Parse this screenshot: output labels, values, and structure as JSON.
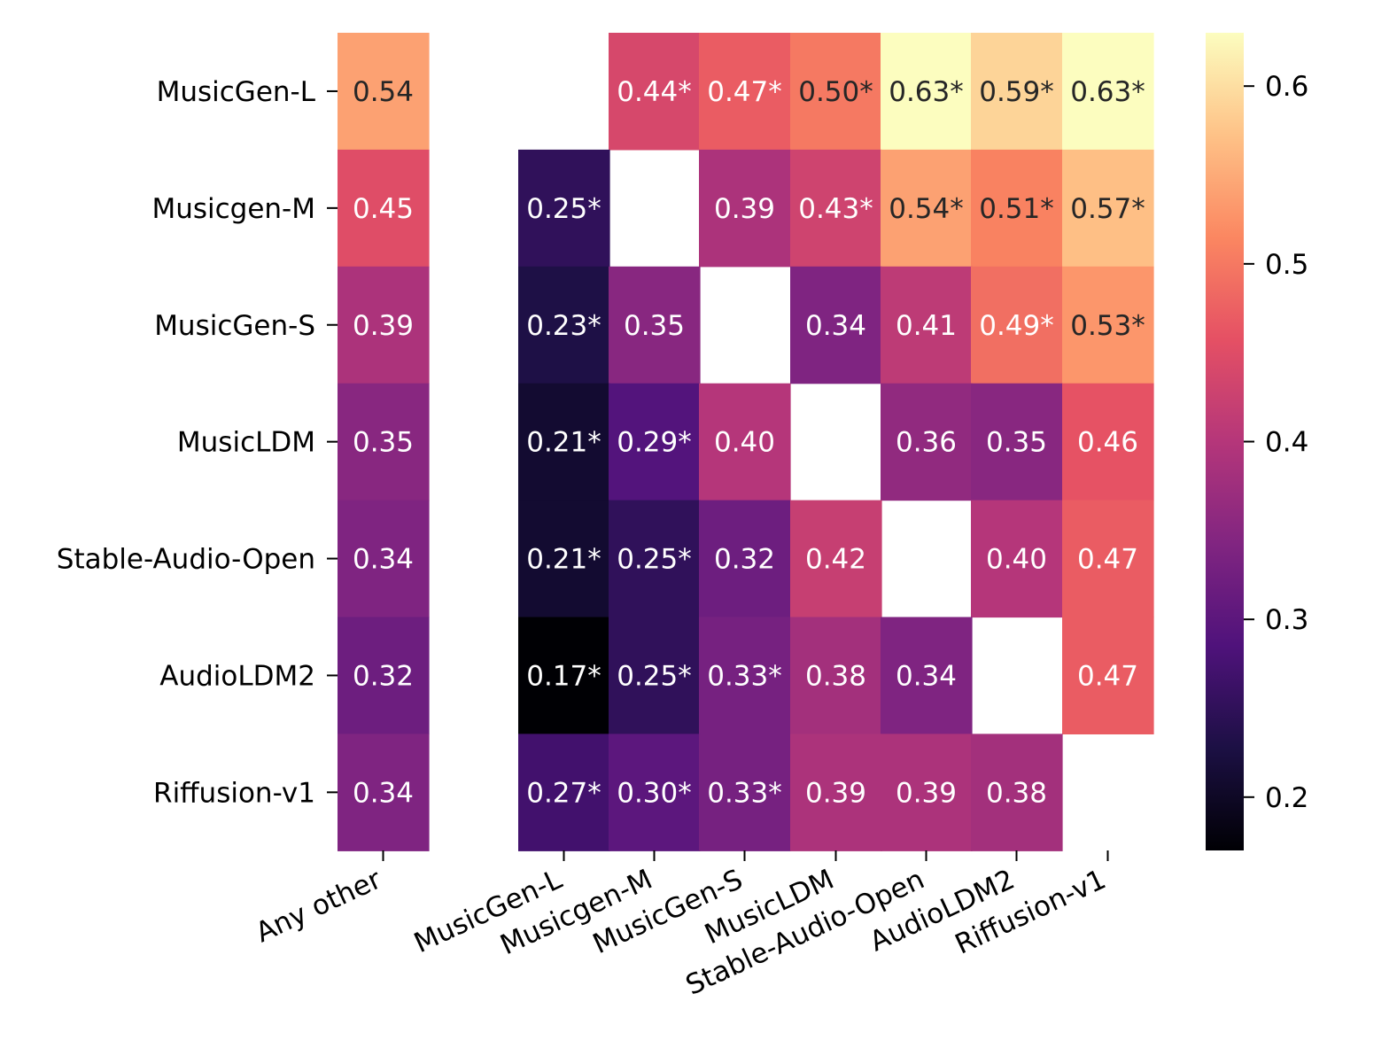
{
  "chart_data": {
    "type": "heatmap",
    "title": "",
    "xlabel": "",
    "ylabel": "",
    "colormap": "magma",
    "vmin": 0.17,
    "vmax": 0.63,
    "columns": [
      "Any other",
      "MusicGen-L",
      "Musicgen-M",
      "MusicGen-S",
      "MusicLDM",
      "Stable-Audio-Open",
      "AudioLDM2",
      "Riffusion-v1"
    ],
    "rows": [
      "MusicGen-L",
      "Musicgen-M",
      "MusicGen-S",
      "MusicLDM",
      "Stable-Audio-Open",
      "AudioLDM2",
      "Riffusion-v1"
    ],
    "values": [
      [
        0.54,
        null,
        0.44,
        0.47,
        0.5,
        0.63,
        0.59,
        0.63
      ],
      [
        0.45,
        0.25,
        null,
        0.39,
        0.43,
        0.54,
        0.51,
        0.57
      ],
      [
        0.39,
        0.23,
        0.35,
        null,
        0.34,
        0.41,
        0.49,
        0.53
      ],
      [
        0.35,
        0.21,
        0.29,
        0.4,
        null,
        0.36,
        0.35,
        0.46
      ],
      [
        0.34,
        0.21,
        0.25,
        0.32,
        0.42,
        null,
        0.4,
        0.47
      ],
      [
        0.32,
        0.17,
        0.25,
        0.33,
        0.38,
        0.34,
        null,
        0.47
      ],
      [
        0.34,
        0.27,
        0.3,
        0.33,
        0.39,
        0.39,
        0.38,
        null
      ]
    ],
    "labels": [
      [
        "0.54",
        "",
        "0.44*",
        "0.47*",
        "0.50*",
        "0.63*",
        "0.59*",
        "0.63*"
      ],
      [
        "0.45",
        "0.25*",
        "",
        "0.39",
        "0.43*",
        "0.54*",
        "0.51*",
        "0.57*"
      ],
      [
        "0.39",
        "0.23*",
        "0.35",
        "",
        "0.34",
        "0.41",
        "0.49*",
        "0.53*"
      ],
      [
        "0.35",
        "0.21*",
        "0.29*",
        "0.40",
        "",
        "0.36",
        "0.35",
        "0.46"
      ],
      [
        "0.34",
        "0.21*",
        "0.25*",
        "0.32",
        "0.42",
        "",
        "0.40",
        "0.47"
      ],
      [
        "0.32",
        "0.17*",
        "0.25*",
        "0.33*",
        "0.38",
        "0.34",
        "",
        "0.47"
      ],
      [
        "0.34",
        "0.27*",
        "0.30*",
        "0.33*",
        "0.39",
        "0.39",
        "0.38",
        ""
      ]
    ],
    "colorbar": {
      "ticks": [
        0.2,
        0.3,
        0.4,
        0.5,
        0.6
      ],
      "tick_labels": [
        "0.2",
        "0.3",
        "0.4",
        "0.5",
        "0.6"
      ]
    }
  }
}
